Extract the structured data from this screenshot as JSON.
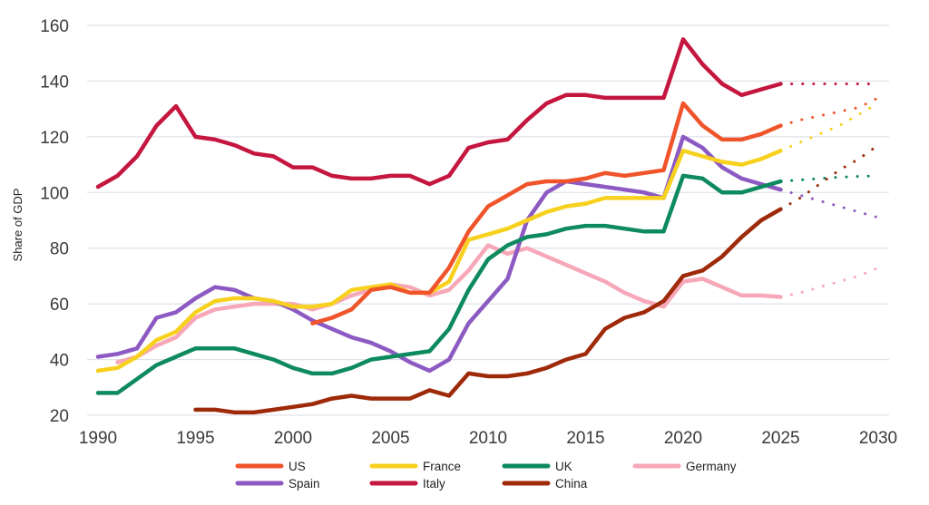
{
  "chart_data": {
    "type": "line",
    "title": "",
    "xlabel": "",
    "ylabel": "Share of GDP",
    "xlim": [
      1990,
      2030
    ],
    "ylim": [
      20,
      160
    ],
    "x_ticks": [
      "1990",
      "1995",
      "2000",
      "2005",
      "2010",
      "2015",
      "2020",
      "2025",
      "2030"
    ],
    "y_ticks": [
      "20",
      "40",
      "60",
      "80",
      "100",
      "120",
      "140",
      "160"
    ],
    "grid": "horizontal",
    "legend_position": "bottom",
    "series": [
      {
        "name": "US",
        "color": "#f0542b",
        "x": [
          2001,
          2002,
          2003,
          2004,
          2005,
          2006,
          2007,
          2008,
          2009,
          2010,
          2011,
          2012,
          2013,
          2014,
          2015,
          2016,
          2017,
          2018,
          2019,
          2020,
          2021,
          2022,
          2023,
          2024,
          2025
        ],
        "values": [
          53,
          55,
          58,
          65,
          66,
          64,
          64,
          73,
          86,
          95,
          99,
          103,
          104,
          104,
          105,
          107,
          106,
          107,
          108,
          132,
          124,
          119,
          119,
          121,
          124
        ],
        "projection_x": [
          2025,
          2026,
          2027,
          2028,
          2029,
          2030
        ],
        "projection_values": [
          124,
          126,
          127.5,
          129,
          130.5,
          134
        ]
      },
      {
        "name": "France",
        "color": "#f7d11e",
        "x": [
          1990,
          1991,
          1992,
          1993,
          1994,
          1995,
          1996,
          1997,
          1998,
          1999,
          2000,
          2001,
          2002,
          2003,
          2004,
          2005,
          2006,
          2007,
          2008,
          2009,
          2010,
          2011,
          2012,
          2013,
          2014,
          2015,
          2016,
          2017,
          2018,
          2019,
          2020,
          2021,
          2022,
          2023,
          2024,
          2025
        ],
        "values": [
          36,
          37,
          41,
          47,
          50,
          57,
          61,
          62,
          62,
          61,
          59,
          59,
          60,
          65,
          66,
          67,
          64,
          64,
          68,
          83,
          85,
          87,
          90,
          93,
          95,
          96,
          98,
          98,
          98,
          98,
          115,
          113,
          111,
          110,
          112,
          115
        ],
        "projection_x": [
          2025,
          2026,
          2027,
          2028,
          2029,
          2030
        ],
        "projection_values": [
          115,
          118,
          121,
          124,
          128,
          132
        ]
      },
      {
        "name": "UK",
        "color": "#0e8a5f",
        "x": [
          1990,
          1991,
          1992,
          1993,
          1994,
          1995,
          1996,
          1997,
          1998,
          1999,
          2000,
          2001,
          2002,
          2003,
          2004,
          2005,
          2006,
          2007,
          2008,
          2009,
          2010,
          2011,
          2012,
          2013,
          2014,
          2015,
          2016,
          2017,
          2018,
          2019,
          2020,
          2021,
          2022,
          2023,
          2024,
          2025
        ],
        "values": [
          28,
          28,
          33,
          38,
          41,
          44,
          44,
          44,
          42,
          40,
          37,
          35,
          35,
          37,
          40,
          41,
          42,
          43,
          51,
          65,
          76,
          81,
          84,
          85,
          87,
          88,
          88,
          87,
          86,
          86,
          106,
          105,
          100,
          100,
          102,
          104
        ],
        "projection_x": [
          2025,
          2026,
          2027,
          2028,
          2029,
          2030
        ],
        "projection_values": [
          104,
          104.5,
          105,
          105.5,
          105.8,
          106
        ]
      },
      {
        "name": "Germany",
        "color": "#f7a8b8",
        "x": [
          1991,
          1992,
          1993,
          1994,
          1995,
          1996,
          1997,
          1998,
          1999,
          2000,
          2001,
          2002,
          2003,
          2004,
          2005,
          2006,
          2007,
          2008,
          2009,
          2010,
          2011,
          2012,
          2013,
          2014,
          2015,
          2016,
          2017,
          2018,
          2019,
          2020,
          2021,
          2022,
          2023,
          2024,
          2025
        ],
        "values": [
          39,
          41,
          45,
          48,
          55,
          58,
          59,
          60,
          60,
          60,
          58,
          60,
          63,
          65,
          67,
          66,
          63,
          65,
          72,
          81,
          78,
          80,
          77,
          74,
          71,
          68,
          64,
          61,
          59,
          68,
          69,
          66,
          63,
          63,
          62.5
        ],
        "projection_x": [
          2025,
          2026,
          2027,
          2028,
          2029,
          2030
        ],
        "projection_values": [
          62.5,
          64,
          66,
          68,
          70,
          73
        ]
      },
      {
        "name": "Spain",
        "color": "#8c5ac2",
        "x": [
          1990,
          1991,
          1992,
          1993,
          1994,
          1995,
          1996,
          1997,
          1998,
          1999,
          2000,
          2001,
          2002,
          2003,
          2004,
          2005,
          2006,
          2007,
          2008,
          2009,
          2010,
          2011,
          2012,
          2013,
          2014,
          2015,
          2016,
          2017,
          2018,
          2019,
          2020,
          2021,
          2022,
          2023,
          2024,
          2025
        ],
        "values": [
          41,
          42,
          44,
          55,
          57,
          62,
          66,
          65,
          62,
          61,
          58,
          54,
          51,
          48,
          46,
          43,
          39,
          36,
          40,
          53,
          61,
          69,
          90,
          100,
          104,
          103,
          102,
          101,
          100,
          98,
          120,
          116,
          109,
          105,
          103,
          101
        ],
        "projection_x": [
          2025,
          2026,
          2027,
          2028,
          2029,
          2030
        ],
        "projection_values": [
          101,
          99,
          97,
          95,
          93,
          91
        ]
      },
      {
        "name": "Italy",
        "color": "#c4163f",
        "x": [
          1990,
          1991,
          1992,
          1993,
          1994,
          1995,
          1996,
          1997,
          1998,
          1999,
          2000,
          2001,
          2002,
          2003,
          2004,
          2005,
          2006,
          2007,
          2008,
          2009,
          2010,
          2011,
          2012,
          2013,
          2014,
          2015,
          2016,
          2017,
          2018,
          2019,
          2020,
          2021,
          2022,
          2023,
          2024,
          2025
        ],
        "values": [
          102,
          106,
          113,
          124,
          131,
          120,
          119,
          117,
          114,
          113,
          109,
          109,
          106,
          105,
          105,
          106,
          106,
          103,
          106,
          116,
          118,
          119,
          126,
          132,
          135,
          135,
          134,
          134,
          134,
          134,
          155,
          146,
          139,
          135,
          137,
          139
        ],
        "projection_x": [
          2025,
          2026,
          2027,
          2028,
          2029,
          2030
        ],
        "projection_values": [
          139,
          139,
          139,
          139,
          139,
          139
        ]
      },
      {
        "name": "China",
        "color": "#9e2a0a",
        "x": [
          1995,
          1996,
          1997,
          1998,
          1999,
          2000,
          2001,
          2002,
          2003,
          2004,
          2005,
          2006,
          2007,
          2008,
          2009,
          2010,
          2011,
          2012,
          2013,
          2014,
          2015,
          2016,
          2017,
          2018,
          2019,
          2020,
          2021,
          2022,
          2023,
          2024,
          2025
        ],
        "values": [
          22,
          22,
          21,
          21,
          22,
          23,
          24,
          26,
          27,
          26,
          26,
          26,
          29,
          27,
          35,
          34,
          34,
          35,
          37,
          40,
          42,
          51,
          55,
          57,
          61,
          70,
          72,
          77,
          84,
          90,
          94
        ],
        "projection_x": [
          2025,
          2026,
          2027,
          2028,
          2029,
          2030
        ],
        "projection_values": [
          94,
          98,
          103,
          108,
          112,
          117
        ]
      }
    ]
  }
}
